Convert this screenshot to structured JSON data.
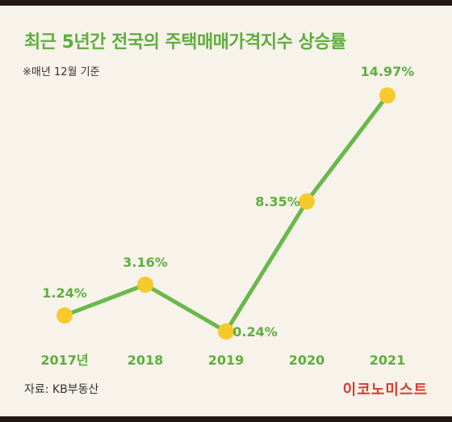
{
  "header": {
    "title": "최근 5년간 전국의 주택매매가격지수 상승률",
    "subtitle": "※매년 12월 기준"
  },
  "footer": {
    "source": "자료: KB부동산",
    "brand": "이코노미스트"
  },
  "colors": {
    "line": "#6ab84a",
    "marker": "#f7ca2c",
    "label": "#5fad3e",
    "background": "#f7f3ea"
  },
  "chart_data": {
    "type": "line",
    "categories": [
      "2017년",
      "2018",
      "2019",
      "2020",
      "2021"
    ],
    "values": [
      1.24,
      3.16,
      0.24,
      8.35,
      14.97
    ],
    "data_labels": [
      "1.24%",
      "3.16%",
      "0.24%",
      "8.35%",
      "14.97%"
    ],
    "ylim": [
      0,
      16
    ],
    "grid": false,
    "legend": "none"
  }
}
